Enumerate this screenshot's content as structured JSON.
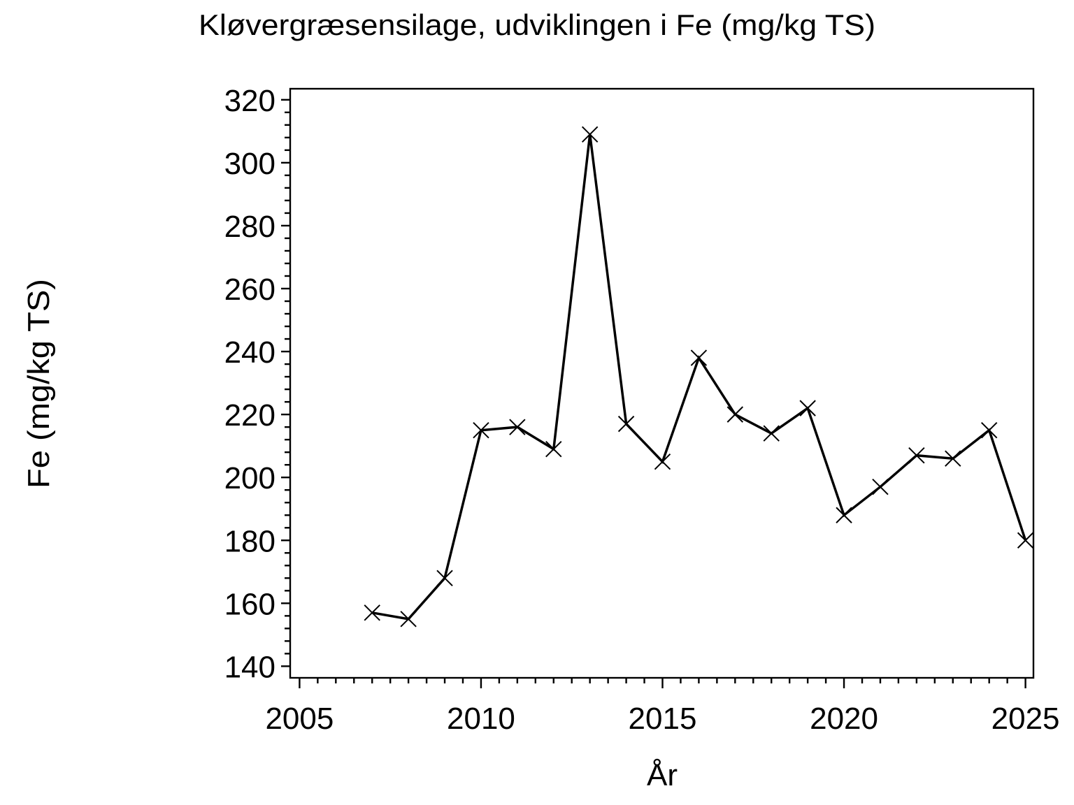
{
  "page": {
    "background": "#ffffff"
  },
  "chart_data": {
    "type": "line",
    "title": "Kløvergræsensilage, udviklingen i Fe (mg/kg TS)",
    "xlabel": "År",
    "ylabel": "Fe (mg/kg TS)",
    "x": [
      2007,
      2008,
      2009,
      2010,
      2011,
      2012,
      2013,
      2014,
      2015,
      2016,
      2017,
      2018,
      2019,
      2020,
      2021,
      2022,
      2023,
      2024,
      2025
    ],
    "values": [
      157,
      155,
      168,
      215,
      216,
      209,
      309,
      217,
      205,
      238,
      220,
      214,
      222,
      188,
      197,
      207,
      206,
      215,
      180
    ],
    "xlim": [
      2005,
      2025
    ],
    "ylim": [
      140,
      320
    ],
    "x_major_step": 5,
    "x_minor_step": 0.5,
    "y_major_step": 20,
    "y_minor_step": 4,
    "x_major_ticks": [
      2005,
      2010,
      2015,
      2020,
      2025
    ],
    "y_major_ticks": [
      140,
      160,
      180,
      200,
      220,
      240,
      260,
      280,
      300,
      320
    ],
    "marker": "x",
    "line_color": "#000000",
    "axis_color": "#000000",
    "background": "#ffffff",
    "grid": false,
    "legend_position": "none"
  }
}
